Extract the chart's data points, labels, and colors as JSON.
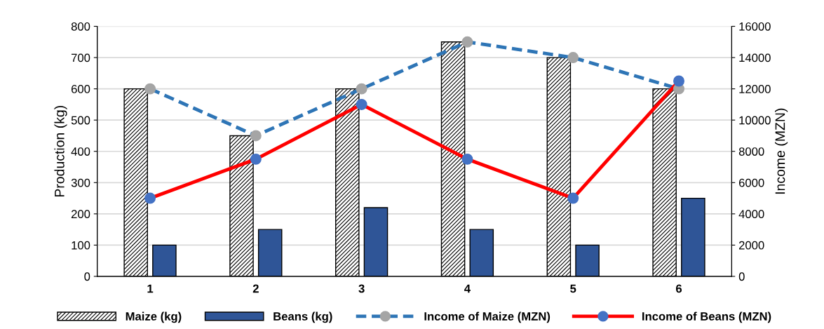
{
  "chart_data": {
    "type": "bar",
    "ylabel": "Production (kg)",
    "y2label": "Income (MZN)",
    "categories": [
      "1",
      "2",
      "3",
      "4",
      "5",
      "6"
    ],
    "ylim": [
      0,
      800
    ],
    "yticks": [
      0,
      100,
      200,
      300,
      400,
      500,
      600,
      700,
      800
    ],
    "y2lim": [
      0,
      16000
    ],
    "y2ticks": [
      0,
      2000,
      4000,
      6000,
      8000,
      10000,
      12000,
      14000,
      16000
    ],
    "grid": "y",
    "legend": "bottom",
    "marker": "circle",
    "series": [
      {
        "name": "Maize (kg)",
        "color": "#000000",
        "values": [
          600,
          450,
          600,
          750,
          700,
          600
        ]
      },
      {
        "name": "Beans (kg)",
        "color": "#2f5597",
        "values": [
          100,
          150,
          220,
          150,
          100,
          250
        ]
      },
      {
        "name": "Income of Maize (MZN)",
        "type": "line",
        "axis": "y2",
        "line_style": "dashed",
        "color": "#2e75b6",
        "colors": [
          "#a5a5a5",
          "#a5a5a5",
          "#a5a5a5",
          "#a5a5a5",
          "#a5a5a5",
          "#a5a5a5"
        ],
        "values": [
          12000,
          9000,
          12000,
          15000,
          14000,
          12000
        ]
      },
      {
        "name": "Income of Beans (MZN)",
        "type": "line",
        "axis": "y2",
        "line_style": "solid",
        "color": "#ff0000",
        "colors": [
          "#4472c4",
          "#4472c4",
          "#4472c4",
          "#4472c4",
          "#4472c4",
          "#4472c4"
        ],
        "values": [
          5000,
          7500,
          11000,
          7500,
          5000,
          12500
        ]
      }
    ]
  }
}
